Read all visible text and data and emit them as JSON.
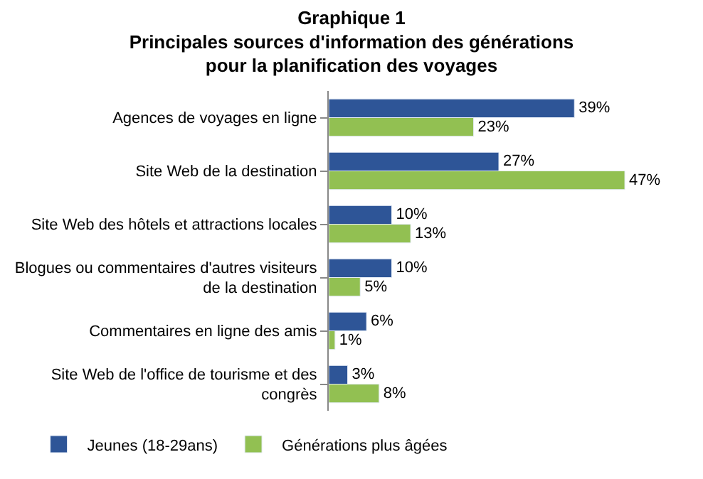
{
  "chart_data": {
    "type": "bar",
    "orientation": "horizontal",
    "title": "Graphique 1",
    "subtitle": "Principales sources d'information des générations pour la planification des voyages",
    "categories": [
      "Agences de voyages en ligne",
      "Site Web de la destination",
      "Site Web des hôtels et attractions locales",
      "Blogues ou commentaires d'autres visiteurs de la destination",
      "Commentaires en ligne des amis",
      "Site Web de l'office de tourisme et des congrès"
    ],
    "series": [
      {
        "name": "Jeunes (18-29ans)",
        "color": "#2e5597",
        "values": [
          39,
          27,
          10,
          10,
          6,
          3
        ],
        "value_labels": [
          "39%",
          "27%",
          "10%",
          "10%",
          "6%",
          "3%"
        ]
      },
      {
        "name": "Générations plus âgées",
        "color": "#92c052",
        "values": [
          23,
          47,
          13,
          5,
          1,
          8
        ],
        "value_labels": [
          "23%",
          "47%",
          "13%",
          "5%",
          "1%",
          "8%"
        ]
      }
    ],
    "legend": "bottom left",
    "tick_labels": "y"
  }
}
